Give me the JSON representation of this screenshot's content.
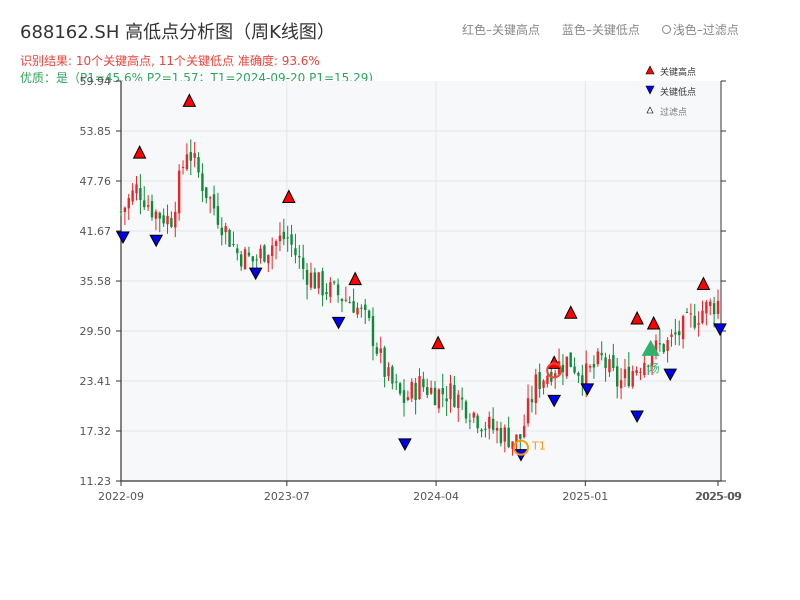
{
  "header": {
    "title": "688162.SH 高低点分析图（周K线图）",
    "legend_red": "红色–关键高点",
    "legend_blue": "蓝色–关键低点",
    "legend_filtered": "浅色–过滤点",
    "result": "识别结果: 10个关键高点, 11个关键低点  准确度: 93.6%",
    "quality": "优质：是（P1=45.6%  P2=1.57；T1=2024-09-20 P1=15.29)"
  },
  "colors": {
    "up": "#e8262a",
    "down": "#0e8a3a",
    "high_marker": "#ff0000",
    "low_marker": "#0000ee",
    "filtered": "#2fb36b",
    "t1": "#f39c12",
    "plot_bg": "#f7f8fa",
    "grid": "#e3e6ea"
  },
  "chart_data": {
    "type": "candlestick",
    "y_ticks": [
      "59.94",
      "53.85",
      "47.76",
      "41.67",
      "35.58",
      "29.50",
      "23.41",
      "17.32",
      "11.23"
    ],
    "ylim": [
      11.23,
      59.94
    ],
    "x_ticks": [
      "2022-09",
      "2023-07",
      "2024-04",
      "2025-01",
      "2025-09"
    ],
    "x_tick_overlap": "2025-09",
    "series_anchor_closes": [
      [
        "2022-09",
        44
      ],
      [
        "2022-10",
        47
      ],
      [
        "2022-11",
        44
      ],
      [
        "2022-12",
        43
      ],
      [
        "2023-01",
        52
      ],
      [
        "2023-02",
        47
      ],
      [
        "2023-03",
        43
      ],
      [
        "2023-04",
        39
      ],
      [
        "2023-05",
        38
      ],
      [
        "2023-06",
        40
      ],
      [
        "2023-07",
        41
      ],
      [
        "2023-08",
        37
      ],
      [
        "2023-09",
        35
      ],
      [
        "2023-10",
        34
      ],
      [
        "2023-11",
        33
      ],
      [
        "2023-12",
        30
      ],
      [
        "2024-01",
        24
      ],
      [
        "2024-02",
        21
      ],
      [
        "2024-03",
        23
      ],
      [
        "2024-04",
        22
      ],
      [
        "2024-05",
        22
      ],
      [
        "2024-06",
        20
      ],
      [
        "2024-07",
        18
      ],
      [
        "2024-08",
        17
      ],
      [
        "2024-09",
        16
      ],
      [
        "2024-10",
        23
      ],
      [
        "2024-11",
        25
      ],
      [
        "2024-12",
        26
      ],
      [
        "2025-01",
        24
      ],
      [
        "2025-02",
        26
      ],
      [
        "2025-03",
        23
      ],
      [
        "2025-04",
        25
      ],
      [
        "2025-05",
        27
      ],
      [
        "2025-06",
        28
      ],
      [
        "2025-07",
        30
      ],
      [
        "2025-08",
        32
      ],
      [
        "2025-09",
        33
      ]
    ],
    "key_highs": [
      {
        "date": "2022-10",
        "price": 50.3
      },
      {
        "date": "2023-01",
        "price": 56.6
      },
      {
        "date": "2023-07",
        "price": 44.9
      },
      {
        "date": "2023-11",
        "price": 34.9
      },
      {
        "date": "2024-04",
        "price": 27.1
      },
      {
        "date": "2024-12",
        "price": 30.8
      },
      {
        "date": "2025-04",
        "price": 30.1
      },
      {
        "date": "2025-05",
        "price": 29.5
      },
      {
        "date": "2025-08",
        "price": 34.3
      },
      {
        "date": "2024-11",
        "price": 24.7
      }
    ],
    "key_lows": [
      {
        "date": "2022-09",
        "price": 41.8
      },
      {
        "date": "2022-11",
        "price": 41.4
      },
      {
        "date": "2023-05",
        "price": 37.4
      },
      {
        "date": "2023-10",
        "price": 31.4
      },
      {
        "date": "2024-02",
        "price": 16.6
      },
      {
        "date": "2024-09",
        "price": 15.3
      },
      {
        "date": "2024-11",
        "price": 21.9
      },
      {
        "date": "2025-01",
        "price": 23.3
      },
      {
        "date": "2025-04",
        "price": 20.0
      },
      {
        "date": "2025-06",
        "price": 25.1
      },
      {
        "date": "2025-09",
        "price": 30.6
      }
    ],
    "filtered_points": [
      {
        "date": "2025-05",
        "price": 27.2,
        "label": "场"
      }
    ],
    "t1": {
      "date": "2024-09",
      "price": 15.29,
      "label": "T1"
    },
    "legend": {
      "high": "关键高点",
      "low": "关键低点",
      "filtered": "过滤点",
      "placement": "top-right"
    }
  }
}
